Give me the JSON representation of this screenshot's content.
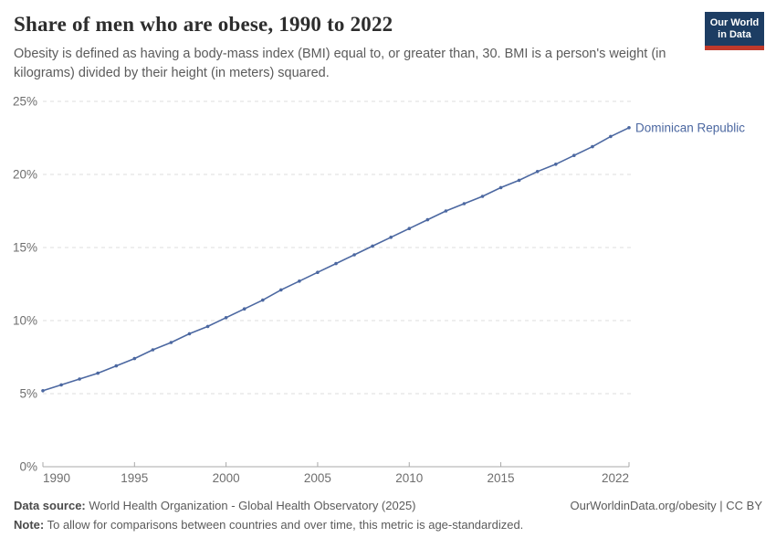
{
  "logo": {
    "line1": "Our World",
    "line2": "in Data",
    "bg_color": "#1d3d63",
    "accent_color": "#c0392b"
  },
  "footer": {
    "datasource_label": "Data source:",
    "datasource_text": " World Health Organization - Global Health Observatory (2025)",
    "link": "OurWorldinData.org/obesity | CC BY",
    "note_label": "Note:",
    "note_text": " To allow for comparisons between countries and over time, this metric is age-standardized."
  },
  "chart_data": {
    "type": "line",
    "title": "Share of men who are obese, 1990 to 2022",
    "subtitle": "Obesity is defined as having a body-mass index (BMI) equal to, or greater than, 30. BMI is a person's weight (in kilograms) divided by their height (in meters) squared.",
    "series": [
      {
        "name": "Dominican Republic",
        "color": "#4c68a1",
        "x": [
          1990,
          1991,
          1992,
          1993,
          1994,
          1995,
          1996,
          1997,
          1998,
          1999,
          2000,
          2001,
          2002,
          2003,
          2004,
          2005,
          2006,
          2007,
          2008,
          2009,
          2010,
          2011,
          2012,
          2013,
          2014,
          2015,
          2016,
          2017,
          2018,
          2019,
          2020,
          2021,
          2022
        ],
        "values": [
          5.2,
          5.6,
          6.0,
          6.4,
          6.9,
          7.4,
          8.0,
          8.5,
          9.1,
          9.6,
          10.2,
          10.8,
          11.4,
          12.1,
          12.7,
          13.3,
          13.9,
          14.5,
          15.1,
          15.7,
          16.3,
          16.9,
          17.5,
          18.0,
          18.5,
          19.1,
          19.6,
          20.2,
          20.7,
          21.3,
          21.9,
          22.6,
          23.2
        ]
      }
    ],
    "xlabel": "",
    "ylabel": "",
    "xlim": [
      1990,
      2022
    ],
    "ylim": [
      0,
      25
    ],
    "x_ticks": [
      1990,
      1995,
      2000,
      2005,
      2010,
      2015,
      2022
    ],
    "y_ticks": [
      0,
      5,
      10,
      15,
      20,
      25
    ],
    "y_tick_suffix": "%",
    "grid": "horizontal-dashed",
    "legend_position": "end-of-line-label",
    "grid_color": "#dcdcdc",
    "axis_color": "#a9a9a9",
    "tick_label_color": "#6e6e6e"
  }
}
